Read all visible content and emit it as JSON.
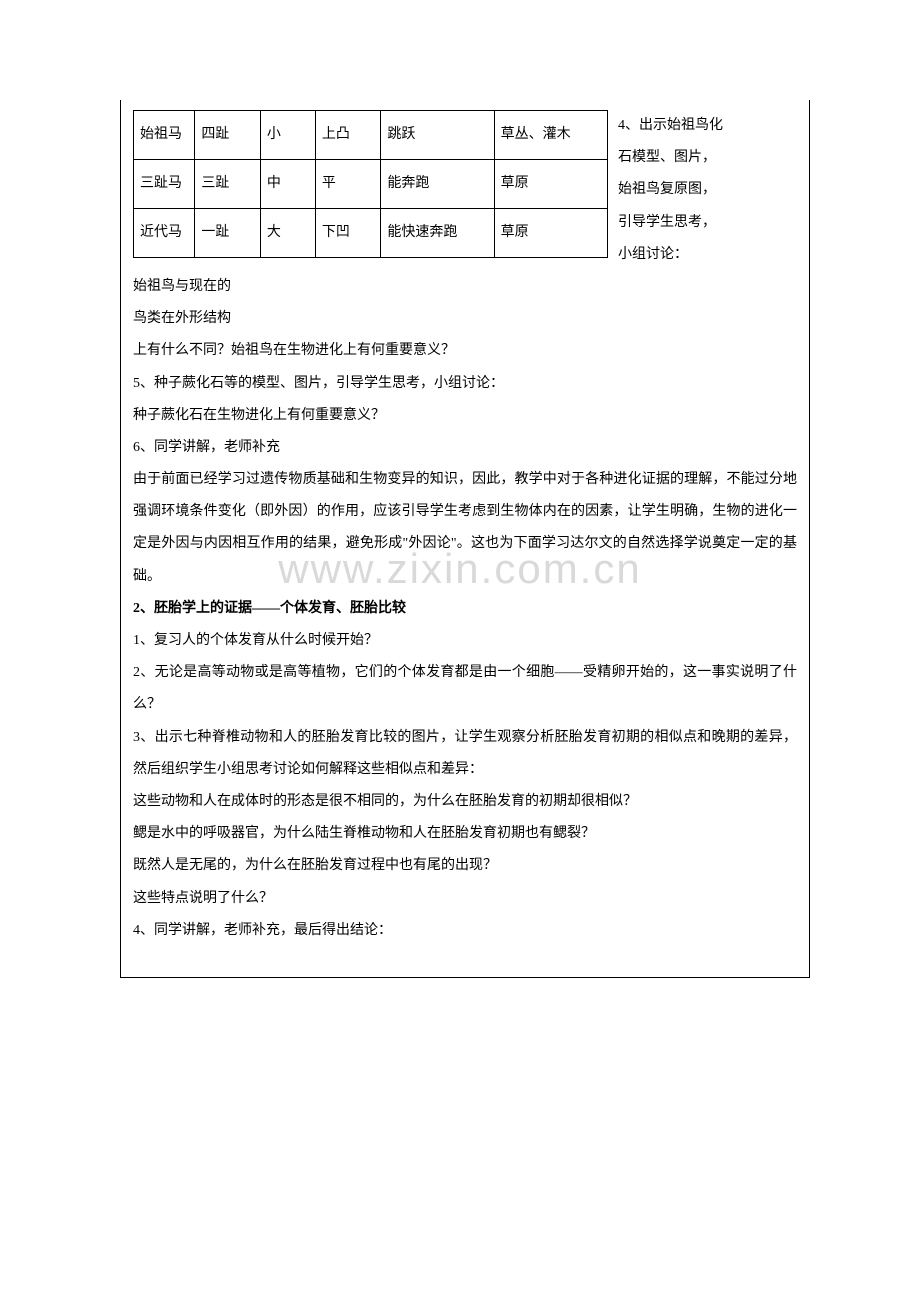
{
  "table": {
    "rows": [
      {
        "name": "始祖马",
        "c2": "四趾",
        "c3": "小",
        "c4": "上凸",
        "c5": "跳跃",
        "c6": "草丛、灌木"
      },
      {
        "name": "三趾马",
        "c2": "三趾",
        "c3": "中",
        "c4": "平",
        "c5": "能奔跑",
        "c6": "草原"
      },
      {
        "name": "近代马",
        "c2": "一趾",
        "c3": "大",
        "c4": "下凹",
        "c5": "能快速奔跑",
        "c6": "草原"
      }
    ]
  },
  "side": {
    "l1": "4、出示始祖鸟化",
    "l2": "石模型、图片，",
    "l3": "始祖鸟复原图，",
    "l4": "引导学生思考，",
    "l5": "小组讨论：",
    "l6": "始祖鸟与现在的",
    "l7": "鸟类在外形结构"
  },
  "body1": {
    "p1": "上有什么不同？始祖鸟在生物进化上有何重要意义？",
    "p2": "5、种子蕨化石等的模型、图片，引导学生思考，小组讨论：",
    "p3": "种子蕨化石在生物进化上有何重要意义？",
    "p4": "6、同学讲解，老师补充",
    "p5": "由于前面已经学习过遗传物质基础和生物变异的知识，因此，教学中对于各种进化证据的理解，不能过分地强调环境条件变化（即外因）的作用，应该引导学生考虑到生物体内在的因素，让学生明确，生物的进化一定是外因与内因相互作用的结果，避免形成\"外因论\"。这也为下面学习达尔文的自然选择学说奠定一定的基础。"
  },
  "section2": {
    "title": "2、胚胎学上的证据——个体发育、胚胎比较",
    "p1": "1、复习人的个体发育从什么时候开始？",
    "p2": "2、无论是高等动物或是高等植物，它们的个体发育都是由一个细胞——受精卵开始的，这一事实说明了什么？",
    "p3": "3、出示七种脊椎动物和人的胚胎发育比较的图片，让学生观察分析胚胎发育初期的相似点和晚期的差异，然后组织学生小组思考讨论如何解释这些相似点和差异：",
    "p4": "这些动物和人在成体时的形态是很不相同的，为什么在胚胎发育的初期却很相似？",
    "p5": "鳃是水中的呼吸器官，为什么陆生脊椎动物和人在胚胎发育初期也有鳃裂？",
    "p6": "既然人是无尾的，为什么在胚胎发育过程中也有尾的出现？",
    "p7": "这些特点说明了什么？",
    "p8": "4、同学讲解，老师补充，最后得出结论："
  },
  "watermark": "www.zixin.com.cn"
}
